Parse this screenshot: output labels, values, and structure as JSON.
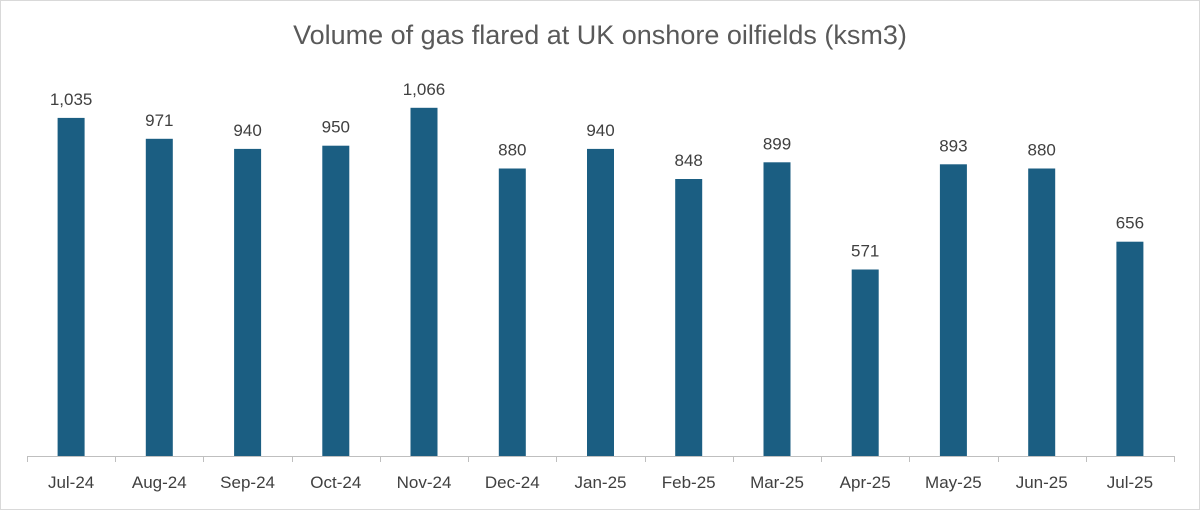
{
  "chart_data": {
    "type": "bar",
    "title": "Volume of gas flared at UK onshore oilfields (ksm3)",
    "xlabel": "",
    "ylabel": "",
    "categories": [
      "Jul-24",
      "Aug-24",
      "Sep-24",
      "Oct-24",
      "Nov-24",
      "Dec-24",
      "Jan-25",
      "Feb-25",
      "Mar-25",
      "Apr-25",
      "May-25",
      "Jun-25",
      "Jul-25"
    ],
    "values": [
      1035,
      971,
      940,
      950,
      1066,
      880,
      940,
      848,
      899,
      571,
      893,
      880,
      656
    ],
    "value_labels": [
      "1,035",
      "971",
      "940",
      "950",
      "1,066",
      "880",
      "940",
      "848",
      "899",
      "571",
      "893",
      "880",
      "656"
    ],
    "ylim": [
      0,
      1200
    ],
    "grid": false,
    "legend": "none",
    "bar_color": "#1b5e82",
    "axis_color": "#bfbfbf"
  }
}
